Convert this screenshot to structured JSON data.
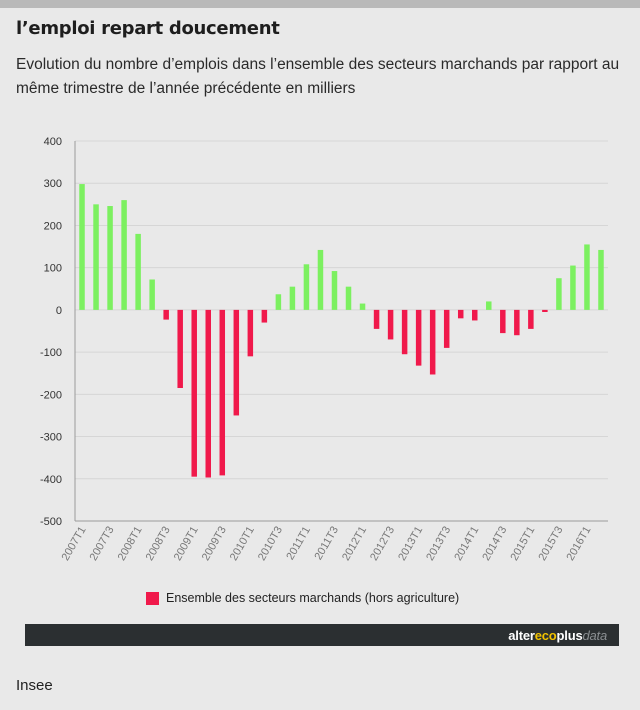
{
  "title": "l’emploi repart doucement",
  "subtitle": "Evolution du nombre d’emplois dans l’ensemble des secteurs marchands par rapport au même trimestre de l’année précédente en milliers",
  "brand": {
    "part1": "alter",
    "part2": "eco",
    "part3": "plus",
    "part4": "data"
  },
  "source": "Insee",
  "colors": {
    "positive": "#7cf060",
    "negative": "#f0194b",
    "grid": "#d6d6d6",
    "axis": "#9a9a9a",
    "background": "#e9e9e9"
  },
  "chart_data": {
    "type": "bar",
    "title": "l’emploi repart doucement",
    "xlabel": "",
    "ylabel": "",
    "ylim": [
      -500,
      400
    ],
    "yticks": [
      400,
      300,
      200,
      100,
      0,
      -100,
      -200,
      -300,
      -400,
      -500
    ],
    "grid": true,
    "legend_position": "bottom",
    "categories": [
      "2007T1",
      "2007T2",
      "2007T3",
      "2007T4",
      "2008T1",
      "2008T2",
      "2008T3",
      "2008T4",
      "2009T1",
      "2009T2",
      "2009T3",
      "2009T4",
      "2010T1",
      "2010T2",
      "2010T3",
      "2010T4",
      "2011T1",
      "2011T2",
      "2011T3",
      "2011T4",
      "2012T1",
      "2012T2",
      "2012T3",
      "2012T4",
      "2013T1",
      "2013T2",
      "2013T3",
      "2013T4",
      "2014T1",
      "2014T2",
      "2014T3",
      "2014T4",
      "2015T1",
      "2015T2",
      "2015T3",
      "2015T4",
      "2016T1",
      "2016T2"
    ],
    "xtick_labels": [
      "2007T1",
      "2007T3",
      "2008T1",
      "2008T3",
      "2009T1",
      "2009T3",
      "2010T1",
      "2010T3",
      "2011T1",
      "2011T3",
      "2012T1",
      "2012T3",
      "2013T1",
      "2013T3",
      "2014T1",
      "2014T3",
      "2015T1",
      "2015T3",
      "2016T1"
    ],
    "series": [
      {
        "name": "Ensemble des secteurs marchands (hors agriculture)",
        "values": [
          298,
          250,
          246,
          260,
          180,
          72,
          -23,
          -185,
          -395,
          -397,
          -392,
          -250,
          -110,
          -30,
          37,
          55,
          108,
          142,
          92,
          55,
          15,
          -45,
          -70,
          -105,
          -132,
          -153,
          -90,
          -20,
          -25,
          20,
          -55,
          -60,
          -45,
          -5,
          75,
          105,
          155,
          142
        ]
      }
    ]
  }
}
